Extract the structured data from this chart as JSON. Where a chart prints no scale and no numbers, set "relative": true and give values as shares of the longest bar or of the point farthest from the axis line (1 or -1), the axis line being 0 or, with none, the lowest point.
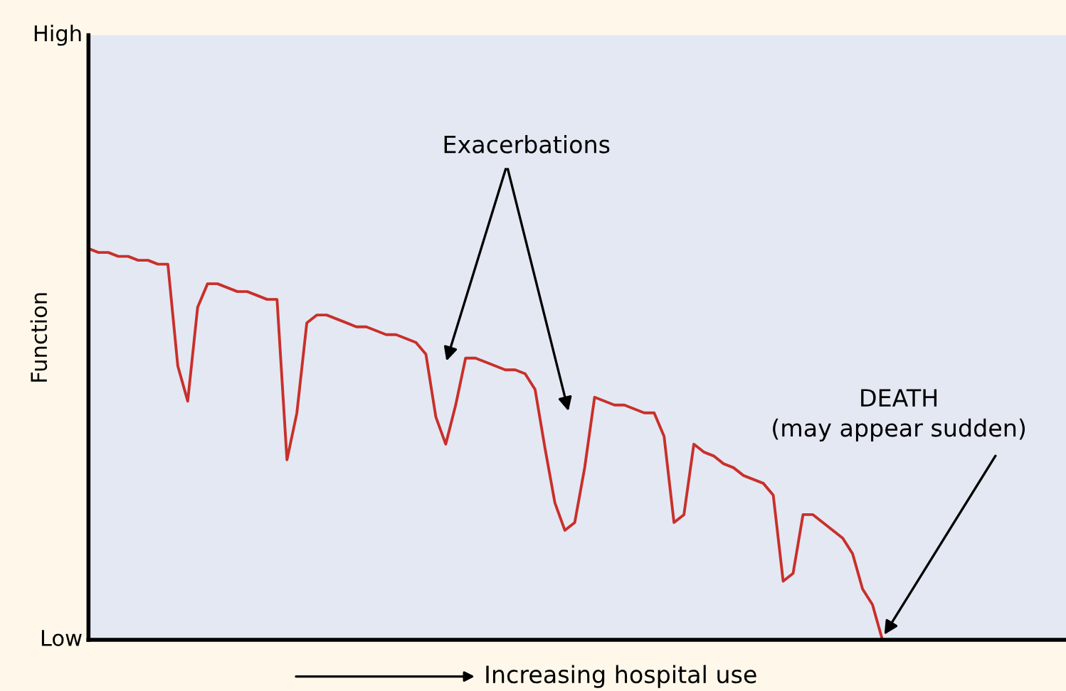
{
  "chart_data": {
    "type": "line",
    "relative": true,
    "xlabel": "Increasing hospital use",
    "ylabel": "Function",
    "annotations": [
      "High",
      "Low",
      "Exacerbations",
      "DEATH\n(may appear sudden)"
    ],
    "categories": [
      null,
      null,
      null,
      null,
      null,
      null,
      null,
      null,
      null,
      null,
      null,
      null,
      null,
      null,
      null,
      null,
      null,
      null,
      null,
      null,
      null,
      null,
      null,
      null,
      null,
      null,
      null,
      null,
      null,
      null,
      null,
      null,
      null,
      null,
      null,
      null,
      null,
      null,
      null,
      null,
      null,
      null,
      null,
      null,
      null,
      null,
      null,
      null,
      null,
      null,
      null,
      null,
      null,
      null,
      null,
      null,
      null,
      null,
      null,
      null,
      null,
      null,
      null,
      null,
      null,
      null,
      null,
      null,
      null,
      null,
      null,
      null,
      null,
      null,
      null,
      null,
      null,
      null,
      null,
      null,
      null,
      null,
      null,
      null,
      null,
      null,
      null,
      null,
      null,
      null,
      null,
      null,
      null,
      null,
      null,
      null,
      null,
      null,
      null
    ],
    "series": [
      {
        "color": "#c8302a",
        "values": [
          1.0,
          0.99,
          0.99,
          0.98,
          0.98,
          0.97,
          0.97,
          0.96,
          0.96,
          0.7,
          0.61,
          0.85,
          0.91,
          0.91,
          0.9,
          0.89,
          0.89,
          0.88,
          0.87,
          0.87,
          0.46,
          0.58,
          0.81,
          0.83,
          0.83,
          0.82,
          0.81,
          0.8,
          0.8,
          0.79,
          0.78,
          0.78,
          0.77,
          0.76,
          0.73,
          0.57,
          0.5,
          0.6,
          0.72,
          0.72,
          0.71,
          0.7,
          0.69,
          0.69,
          0.68,
          0.64,
          0.49,
          0.35,
          0.28,
          0.3,
          0.44,
          0.62,
          0.61,
          0.6,
          0.6,
          0.59,
          0.58,
          0.58,
          0.52,
          0.3,
          0.32,
          0.5,
          0.48,
          0.47,
          0.45,
          0.44,
          0.42,
          0.41,
          0.4,
          0.37,
          0.15,
          0.17,
          0.32,
          0.32,
          0.3,
          0.28,
          0.26,
          0.22,
          0.13,
          0.09,
          0,
          null,
          null,
          null,
          null,
          null,
          null,
          null,
          null,
          null,
          null,
          null,
          null,
          null,
          null,
          null,
          null,
          null,
          null
        ]
      }
    ]
  }
}
